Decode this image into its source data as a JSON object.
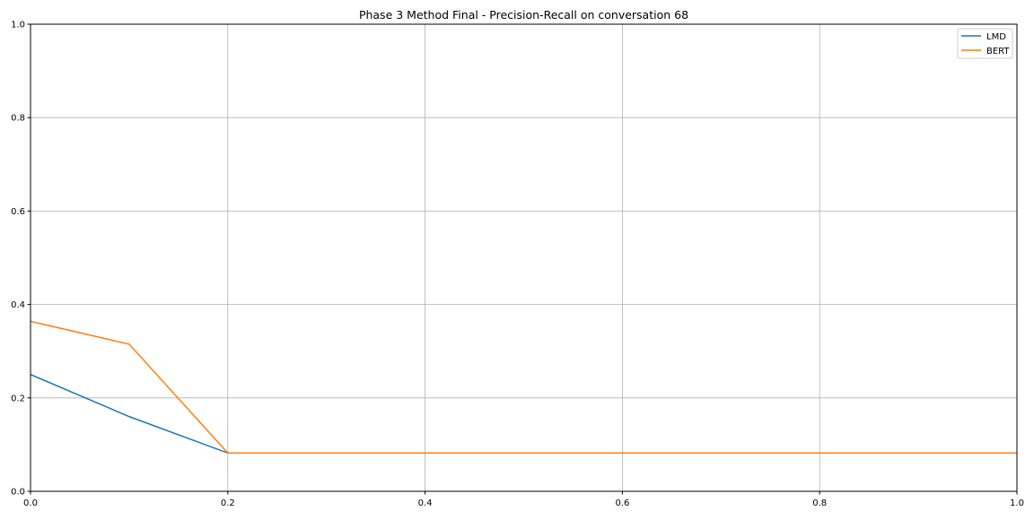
{
  "chart_data": {
    "type": "line",
    "title": "Phase 3 Method Final - Precision-Recall on conversation 68",
    "xlabel": "",
    "ylabel": "",
    "xlim": [
      0,
      1
    ],
    "ylim": [
      0,
      1
    ],
    "xticks": [
      "0.0",
      "0.2",
      "0.4",
      "0.6",
      "0.8",
      "1.0"
    ],
    "yticks": [
      "0.0",
      "0.2",
      "0.4",
      "0.6",
      "0.8",
      "1.0"
    ],
    "grid": true,
    "legend": "top-right",
    "x": [
      0.0,
      0.1,
      0.2,
      0.3,
      0.4,
      0.5,
      0.6,
      0.7,
      0.8,
      0.9,
      1.0
    ],
    "series": [
      {
        "name": "LMD",
        "color": "#1f77b4",
        "values": [
          0.25,
          0.16,
          0.082,
          0.082,
          0.082,
          0.082,
          0.082,
          0.082,
          0.082,
          0.082,
          0.082
        ]
      },
      {
        "name": "BERT",
        "color": "#ff7f0e",
        "values": [
          0.364,
          0.315,
          0.082,
          0.082,
          0.082,
          0.082,
          0.082,
          0.082,
          0.082,
          0.082,
          0.082
        ]
      }
    ]
  }
}
